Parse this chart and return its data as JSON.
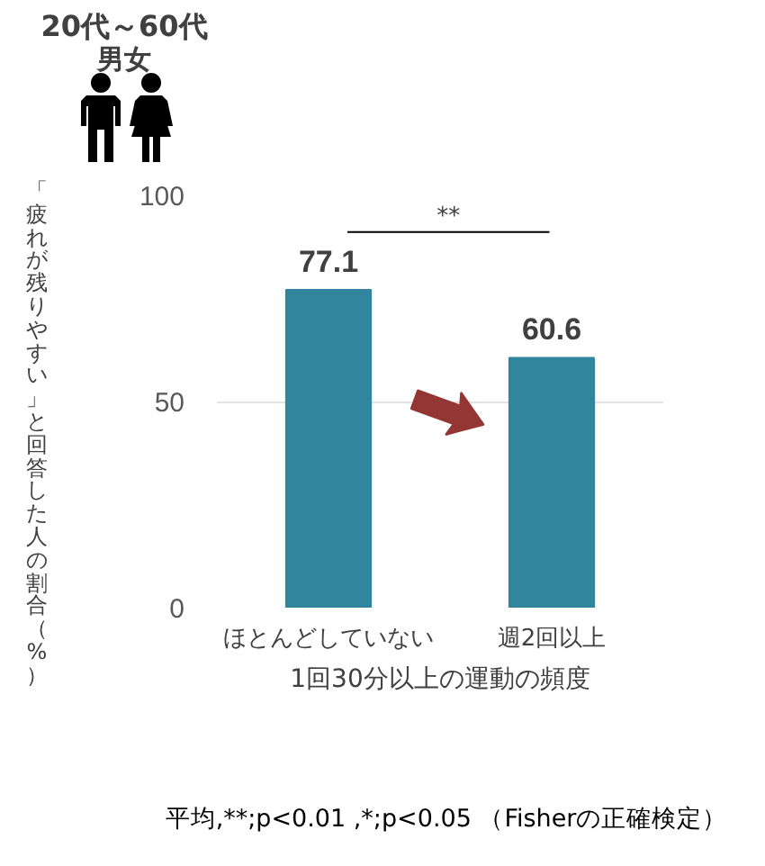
{
  "chart_data": {
    "type": "bar",
    "title": "20代～60代",
    "subtitle": "男女",
    "categories": [
      "ほとんどしていない",
      "週2回以上"
    ],
    "values": [
      77.1,
      60.6
    ],
    "color": "#31859c",
    "xlabel": "1回30分以上の運動の頻度",
    "ylabel": "「疲れが残りやすい」と回答した人の割合（%）",
    "ylim": [
      0,
      100
    ],
    "yticks": [
      0,
      50,
      100
    ],
    "grid": "y",
    "data_labels": true,
    "annotations": [
      "**",
      "平均,**;p<0.01 ,*;p<0.05 （Fisherの正確検定）"
    ]
  }
}
